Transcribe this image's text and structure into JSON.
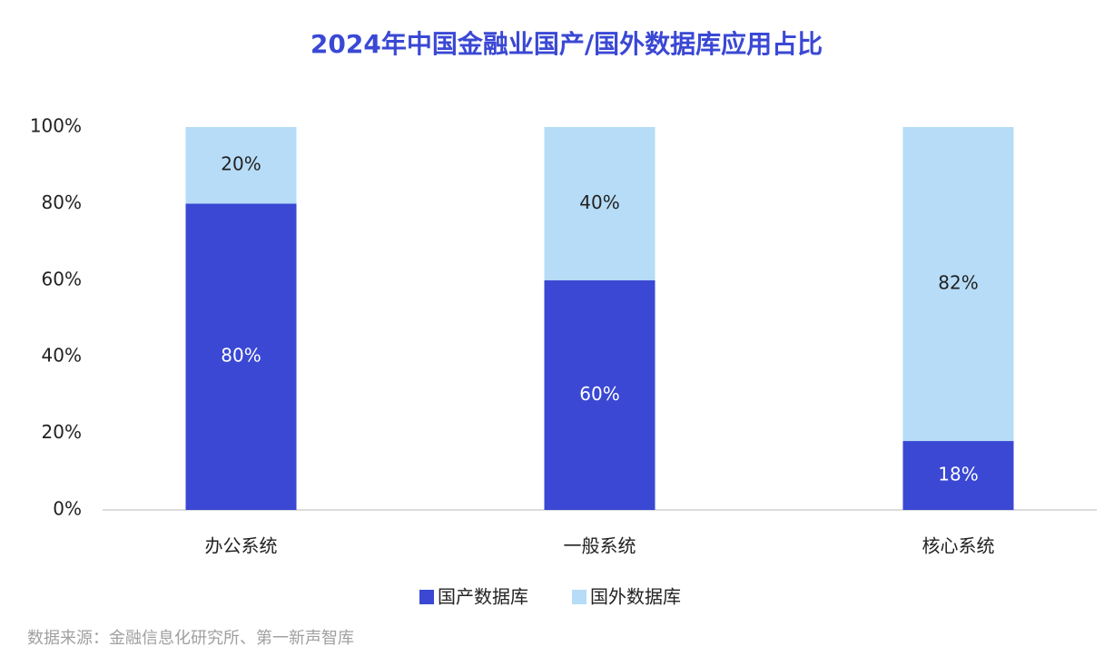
{
  "chart_data": {
    "type": "stacked_bar",
    "title": "2024年中国金融业国产/国外数据库应用占比",
    "categories": [
      "办公系统",
      "一般系统",
      "核心系统"
    ],
    "series": [
      {
        "name": "国产数据库",
        "color": "#3a48d4",
        "values": [
          80,
          60,
          18
        ],
        "value_labels": [
          "80%",
          "60%",
          "18%"
        ]
      },
      {
        "name": "国外数据库",
        "color": "#b6dcf7",
        "values": [
          20,
          40,
          82
        ],
        "value_labels": [
          "20%",
          "40%",
          "82%"
        ]
      }
    ],
    "ylim": [
      0,
      100
    ],
    "yticks": [
      {
        "value": 0,
        "label": "0%"
      },
      {
        "value": 20,
        "label": "20%"
      },
      {
        "value": 40,
        "label": "40%"
      },
      {
        "value": 60,
        "label": "60%"
      },
      {
        "value": 80,
        "label": "80%"
      },
      {
        "value": 100,
        "label": "100%"
      }
    ],
    "legend": "bottom",
    "source": "数据来源：金融信息化研究所、第一新声智库"
  }
}
